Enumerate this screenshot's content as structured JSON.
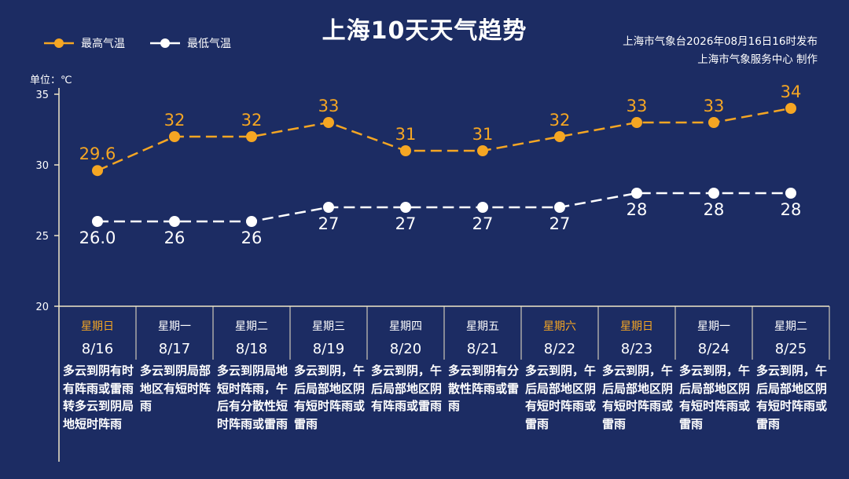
{
  "title": "上海10天天气趋势",
  "credit": {
    "line1": "上海市气象台2026年08月16日16时发布",
    "line2": "上海市气象服务中心 制作"
  },
  "colors": {
    "background": "#1c2c63",
    "high": "#f5a623",
    "low": "#ffffff",
    "weekend": "#f5a623",
    "axis": "#f0e6c8"
  },
  "chart_data": {
    "type": "line",
    "title": "上海10天天气趋势",
    "ylabel": "单位：℃",
    "xlabel": "",
    "ylim": [
      20,
      35
    ],
    "yticks": [
      20,
      25,
      30,
      35
    ],
    "grid": false,
    "legend_position": "top-left",
    "categories": [
      "8/16",
      "8/17",
      "8/18",
      "8/19",
      "8/20",
      "8/21",
      "8/22",
      "8/23",
      "8/24",
      "8/25"
    ],
    "series": [
      {
        "name": "最高气温",
        "values": [
          29.6,
          32,
          32,
          33,
          31,
          31,
          32,
          33,
          33,
          34
        ],
        "labels": [
          "29.6",
          "32",
          "32",
          "33",
          "31",
          "31",
          "32",
          "33",
          "33",
          "34"
        ],
        "color": "#f5a623",
        "style": "dashed",
        "label_position": "above"
      },
      {
        "name": "最低气温",
        "values": [
          26,
          26,
          26,
          27,
          27,
          27,
          27,
          28,
          28,
          28
        ],
        "labels": [
          "26.0",
          "26",
          "26",
          "27",
          "27",
          "27",
          "27",
          "28",
          "28",
          "28"
        ],
        "color": "#ffffff",
        "style": "dashed",
        "label_position": "below"
      }
    ]
  },
  "days": [
    {
      "weekday": "星期日",
      "date": "8/16",
      "weekend": true,
      "weather": "多云到阴有时有阵雨或雷雨转多云到阴局地短时阵雨"
    },
    {
      "weekday": "星期一",
      "date": "8/17",
      "weekend": false,
      "weather": "多云到阴局部地区有短时阵雨"
    },
    {
      "weekday": "星期二",
      "date": "8/18",
      "weekend": false,
      "weather": "多云到阴局地短时阵雨，午后有分散性短时阵雨或雷雨"
    },
    {
      "weekday": "星期三",
      "date": "8/19",
      "weekend": false,
      "weather": "多云到阴，午后局部地区阴有短时阵雨或雷雨"
    },
    {
      "weekday": "星期四",
      "date": "8/20",
      "weekend": false,
      "weather": "多云到阴，午后局部地区阴有阵雨或雷雨"
    },
    {
      "weekday": "星期五",
      "date": "8/21",
      "weekend": false,
      "weather": "多云到阴有分散性阵雨或雷雨"
    },
    {
      "weekday": "星期六",
      "date": "8/22",
      "weekend": true,
      "weather": "多云到阴，午后局部地区阴有短时阵雨或雷雨"
    },
    {
      "weekday": "星期日",
      "date": "8/23",
      "weekend": true,
      "weather": "多云到阴，午后局部地区阴有短时阵雨或雷雨"
    },
    {
      "weekday": "星期一",
      "date": "8/24",
      "weekend": false,
      "weather": "多云到阴，午后局部地区阴有短时阵雨或雷雨"
    },
    {
      "weekday": "星期二",
      "date": "8/25",
      "weekend": false,
      "weather": "多云到阴，午后局部地区阴有短时阵雨或雷雨"
    }
  ]
}
